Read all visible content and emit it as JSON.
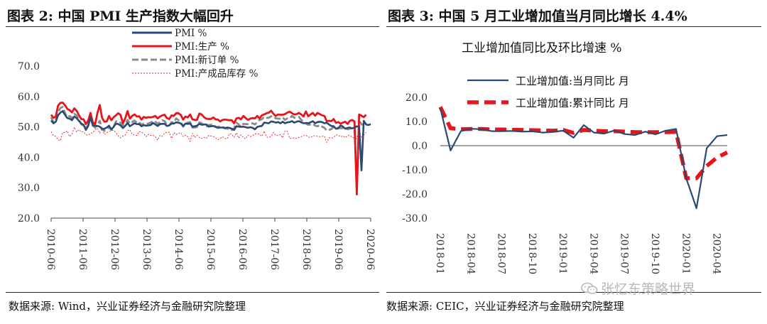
{
  "left": {
    "title": "图表 2:  中国 PMI 生产指数大幅回升",
    "source": "数据来源:  Wind，兴业证券经济与金融研究院整理",
    "chart_data": {
      "type": "line",
      "x_ticks": [
        "2010-06",
        "2011-06",
        "2012-06",
        "2013-06",
        "2014-06",
        "2015-06",
        "2016-06",
        "2017-06",
        "2018-06",
        "2019-06",
        "2020-06"
      ],
      "ylim": [
        20,
        70
      ],
      "y_ticks": [
        "20.0",
        "30.0",
        "40.0",
        "50.0",
        "60.0",
        "70.0"
      ],
      "series": [
        {
          "name": "PMI %",
          "color": "#2b4a73",
          "style": "solid",
          "values": [
            52.1,
            51.2,
            51.7,
            53.8,
            54.7,
            55.2,
            53.9,
            52.9,
            52.7,
            52.2,
            53.4,
            52.9,
            52.0,
            51.1,
            50.7,
            49.0,
            50.3,
            53.1,
            50.5,
            50.4,
            50.3,
            50.1,
            49.3,
            49.4,
            49.8,
            50.4,
            49.2,
            50.0,
            51.1,
            50.9,
            50.5,
            49.6,
            50.3,
            51.3,
            50.2,
            50.7,
            51.2,
            50.9,
            50.9,
            50.2,
            50.6,
            50.4,
            50.5,
            50.6,
            51.3,
            50.8,
            50.3,
            50.9,
            51.0,
            51.0,
            50.3,
            50.5,
            51.1,
            51.1,
            51.5,
            51.4,
            51.1,
            50.3,
            51.1,
            51.0,
            51.1,
            50.1,
            50.2,
            50.4,
            51.0,
            50.7,
            50.8,
            50.8,
            50.1,
            50.2,
            50.3,
            50.0,
            49.7,
            49.8,
            49.8,
            49.6,
            49.8,
            49.7,
            49.4,
            49.0,
            50.2,
            50.1,
            50.0,
            50.1,
            49.9,
            49.7,
            49.9,
            49.7,
            49.2,
            50.0,
            50.2,
            50.3,
            51.4,
            51.3,
            51.2,
            51.8,
            51.7,
            51.4,
            51.6,
            51.2,
            51.7,
            51.2,
            51.5,
            51.6,
            51.9,
            51.4,
            51.7,
            51.9,
            51.5,
            51.2,
            51.3,
            51.2,
            51.5,
            51.9,
            51.2,
            51.6,
            51.7,
            51.6,
            51.2,
            51.4,
            50.8,
            50.3,
            50.2,
            49.4,
            49.5,
            50.5,
            50.1,
            49.4,
            49.7,
            49.8,
            49.5,
            49.8,
            50.2,
            50.0,
            35.7,
            52.0,
            50.8,
            50.6,
            50.9
          ]
        },
        {
          "name": "PMI:生产 %",
          "color": "#e8141c",
          "style": "solid",
          "values": [
            54.0,
            53.0,
            53.4,
            57.0,
            57.9,
            58.0,
            57.1,
            55.9,
            55.5,
            54.8,
            56.1,
            55.3,
            53.9,
            52.6,
            52.5,
            50.9,
            52.1,
            54.6,
            51.5,
            50.9,
            54.6,
            57.2,
            53.0,
            51.7,
            51.8,
            53.6,
            52.2,
            53.2,
            53.8,
            54.5,
            53.9,
            51.2,
            52.8,
            55.2,
            52.7,
            53.6,
            54.1,
            53.4,
            53.5,
            52.4,
            53.3,
            53.0,
            53.2,
            53.1,
            53.3,
            53.6,
            52.8,
            53.4,
            53.8,
            54.0,
            52.9,
            52.6,
            53.8,
            53.6,
            54.5,
            54.5,
            53.9,
            52.4,
            53.4,
            53.1,
            54.1,
            52.5,
            52.3,
            52.3,
            54.4,
            54.1,
            53.2,
            52.7,
            52.6,
            52.6,
            53.1,
            52.5,
            52.4,
            51.8,
            52.3,
            52.4,
            52.3,
            52.2,
            52.2,
            51.2,
            52.8,
            53.0,
            52.5,
            53.6,
            52.9,
            52.3,
            52.7,
            52.9,
            52.8,
            53.6,
            52.8,
            53.8,
            54.1,
            54.5,
            54.7,
            55.3,
            54.3,
            53.6,
            54.1,
            54.0,
            54.0,
            54.2,
            54.7,
            55.0,
            54.5,
            54.1,
            54.2,
            54.6,
            54.1,
            53.4,
            55.1,
            53.5,
            54.1,
            54.6,
            53.7,
            54.6,
            54.2,
            53.8,
            53.6,
            51.9,
            52.0,
            51.9,
            52.6,
            51.3,
            51.6,
            51.1,
            51.4,
            51.7,
            51.0,
            52.0,
            52.3,
            51.8,
            27.8,
            54.1,
            53.7,
            53.2,
            54.0
          ]
        },
        {
          "name": "PMI:新订单 %",
          "color": "#8a8a8a",
          "style": "dashed",
          "values": [
            53.2,
            51.5,
            52.2,
            54.8,
            56.2,
            56.6,
            54.5,
            53.2,
            53.6,
            52.9,
            54.3,
            53.8,
            52.3,
            50.9,
            50.4,
            49.8,
            50.5,
            54.5,
            50.4,
            49.8,
            50.8,
            52.0,
            49.2,
            48.7,
            49.3,
            49.8,
            49.1,
            50.1,
            51.8,
            52.0,
            51.3,
            50.5,
            51.1,
            52.3,
            51.1,
            51.6,
            52.1,
            51.4,
            51.6,
            50.6,
            51.1,
            50.9,
            51.1,
            51.4,
            52.0,
            51.7,
            51.0,
            51.6,
            52.2,
            51.9,
            50.6,
            50.5,
            51.6,
            51.4,
            52.8,
            52.2,
            51.5,
            50.1,
            51.2,
            51.4,
            51.6,
            49.8,
            49.8,
            50.0,
            51.5,
            51.2,
            50.4,
            50.2,
            50.6,
            50.7,
            50.9,
            50.0,
            50.0,
            50.2,
            50.1,
            49.6,
            49.4,
            49.4,
            49.0,
            49.5,
            51.4,
            50.8,
            50.0,
            51.0,
            50.9,
            50.9,
            51.0,
            51.2,
            50.8,
            51.6,
            52.3,
            52.5,
            53.3,
            53.0,
            53.0,
            53.5,
            53.5,
            52.8,
            52.7,
            52.7,
            53.1,
            52.3,
            52.8,
            52.8,
            53.6,
            53.0,
            53.1,
            53.3,
            52.3,
            51.7,
            51.1,
            50.7,
            50.8,
            51.0,
            50.4,
            50.2,
            50.6,
            50.1,
            49.7,
            48.8,
            49.0,
            49.3,
            50.0,
            49.8,
            49.7,
            49.6,
            49.6,
            49.8,
            49.2,
            49.4,
            49.6,
            49.3,
            29.3,
            52.0,
            50.9,
            50.4,
            51.4
          ]
        },
        {
          "name": "PMI:产成品库存 %",
          "color": "#e8141c",
          "style": "dotted",
          "values": [
            48.4,
            47.1,
            46.9,
            45.8,
            45.5,
            48.2,
            48.1,
            48.7,
            46.8,
            47.5,
            49.9,
            48.3,
            49.1,
            48.4,
            48.4,
            47.4,
            47.3,
            47.9,
            48.1,
            49.1,
            49.6,
            47.9,
            49.4,
            47.5,
            48.1,
            48.5,
            48.8,
            48.9,
            48.1,
            47.0,
            46.4,
            47.0,
            47.3,
            48.8,
            49.1,
            47.6,
            47.3,
            47.2,
            48.5,
            48.2,
            47.8,
            46.8,
            47.6,
            47.2,
            47.3,
            46.8,
            45.6,
            47.2,
            46.9,
            48.0,
            48.2,
            48.3,
            46.2,
            48.1,
            47.5,
            47.9,
            48.1,
            46.8,
            47.3,
            46.8,
            45.2,
            47.9,
            46.5,
            47.3,
            46.5,
            46.2,
            46.6,
            46.2,
            47.2,
            47.0,
            46.9,
            46.4,
            45.8,
            46.2,
            46.8,
            46.2,
            46.1,
            47.8,
            47.6,
            46.6,
            48.1,
            46.3,
            47.4,
            46.4,
            46.1,
            47.3,
            46.8,
            47.1,
            47.7,
            47.8,
            47.6,
            46.9,
            48.6,
            46.7,
            46.5,
            46.9,
            48.2,
            47.2,
            47.2,
            47.5,
            46.4,
            48.7,
            48.6,
            46.2,
            46.3,
            46.4,
            46.2,
            46.6,
            46.8,
            47.1,
            47.3,
            46.7,
            46.5,
            47.0,
            47.1,
            46.9,
            46.8,
            46.9,
            47.0,
            44.9,
            46.4,
            46.3,
            46.5,
            47.4,
            47.3,
            46.7,
            47.1,
            46.5,
            47.1,
            47.2,
            46.6,
            46.4,
            46.1,
            49.1,
            46.3,
            47.3,
            48.2
          ]
        }
      ]
    }
  },
  "right": {
    "title": "图表 3:  中国 5 月工业增加值当月同比增长 4.4%",
    "subtitle": "工业增加值同比及环比增速  %",
    "source": "数据来源:  CEIC，兴业证券经济与金融研究院整理",
    "chart_data": {
      "type": "line",
      "x_ticks": [
        "2018-01",
        "2018-04",
        "2018-07",
        "2018-10",
        "2019-01",
        "2019-04",
        "2019-07",
        "2019-10",
        "2020-01",
        "2020-04"
      ],
      "ylim": [
        -30,
        20
      ],
      "y_ticks": [
        "20.0",
        "10.0",
        "0.0",
        "-10.0",
        "-20.0",
        "-30.0"
      ],
      "series": [
        {
          "name": "工业增加值:当月同比  月",
          "color": "#2b4a73",
          "style": "solid",
          "values": [
            15.5,
            -2.0,
            6.0,
            7.0,
            6.8,
            6.0,
            6.0,
            6.1,
            5.8,
            5.9,
            5.4,
            5.7,
            6.2,
            3.3,
            8.5,
            5.4,
            5.0,
            6.3,
            4.8,
            4.4,
            5.8,
            4.7,
            6.2,
            6.9,
            -13.5,
            -25.9,
            -1.1,
            3.9,
            4.4
          ]
        },
        {
          "name": "工业增加值:累计同比  月",
          "color": "#e8141c",
          "style": "dashed",
          "values": [
            16.0,
            7.2,
            6.8,
            6.9,
            6.9,
            6.7,
            6.7,
            6.6,
            6.5,
            6.4,
            6.3,
            6.2,
            6.5,
            5.3,
            6.5,
            6.2,
            6.0,
            6.0,
            5.8,
            5.6,
            5.6,
            5.6,
            5.6,
            5.7,
            -13.5,
            -13.5,
            -8.4,
            -4.9,
            -2.8
          ]
        }
      ]
    }
  },
  "watermark": "张忆东策略世界"
}
